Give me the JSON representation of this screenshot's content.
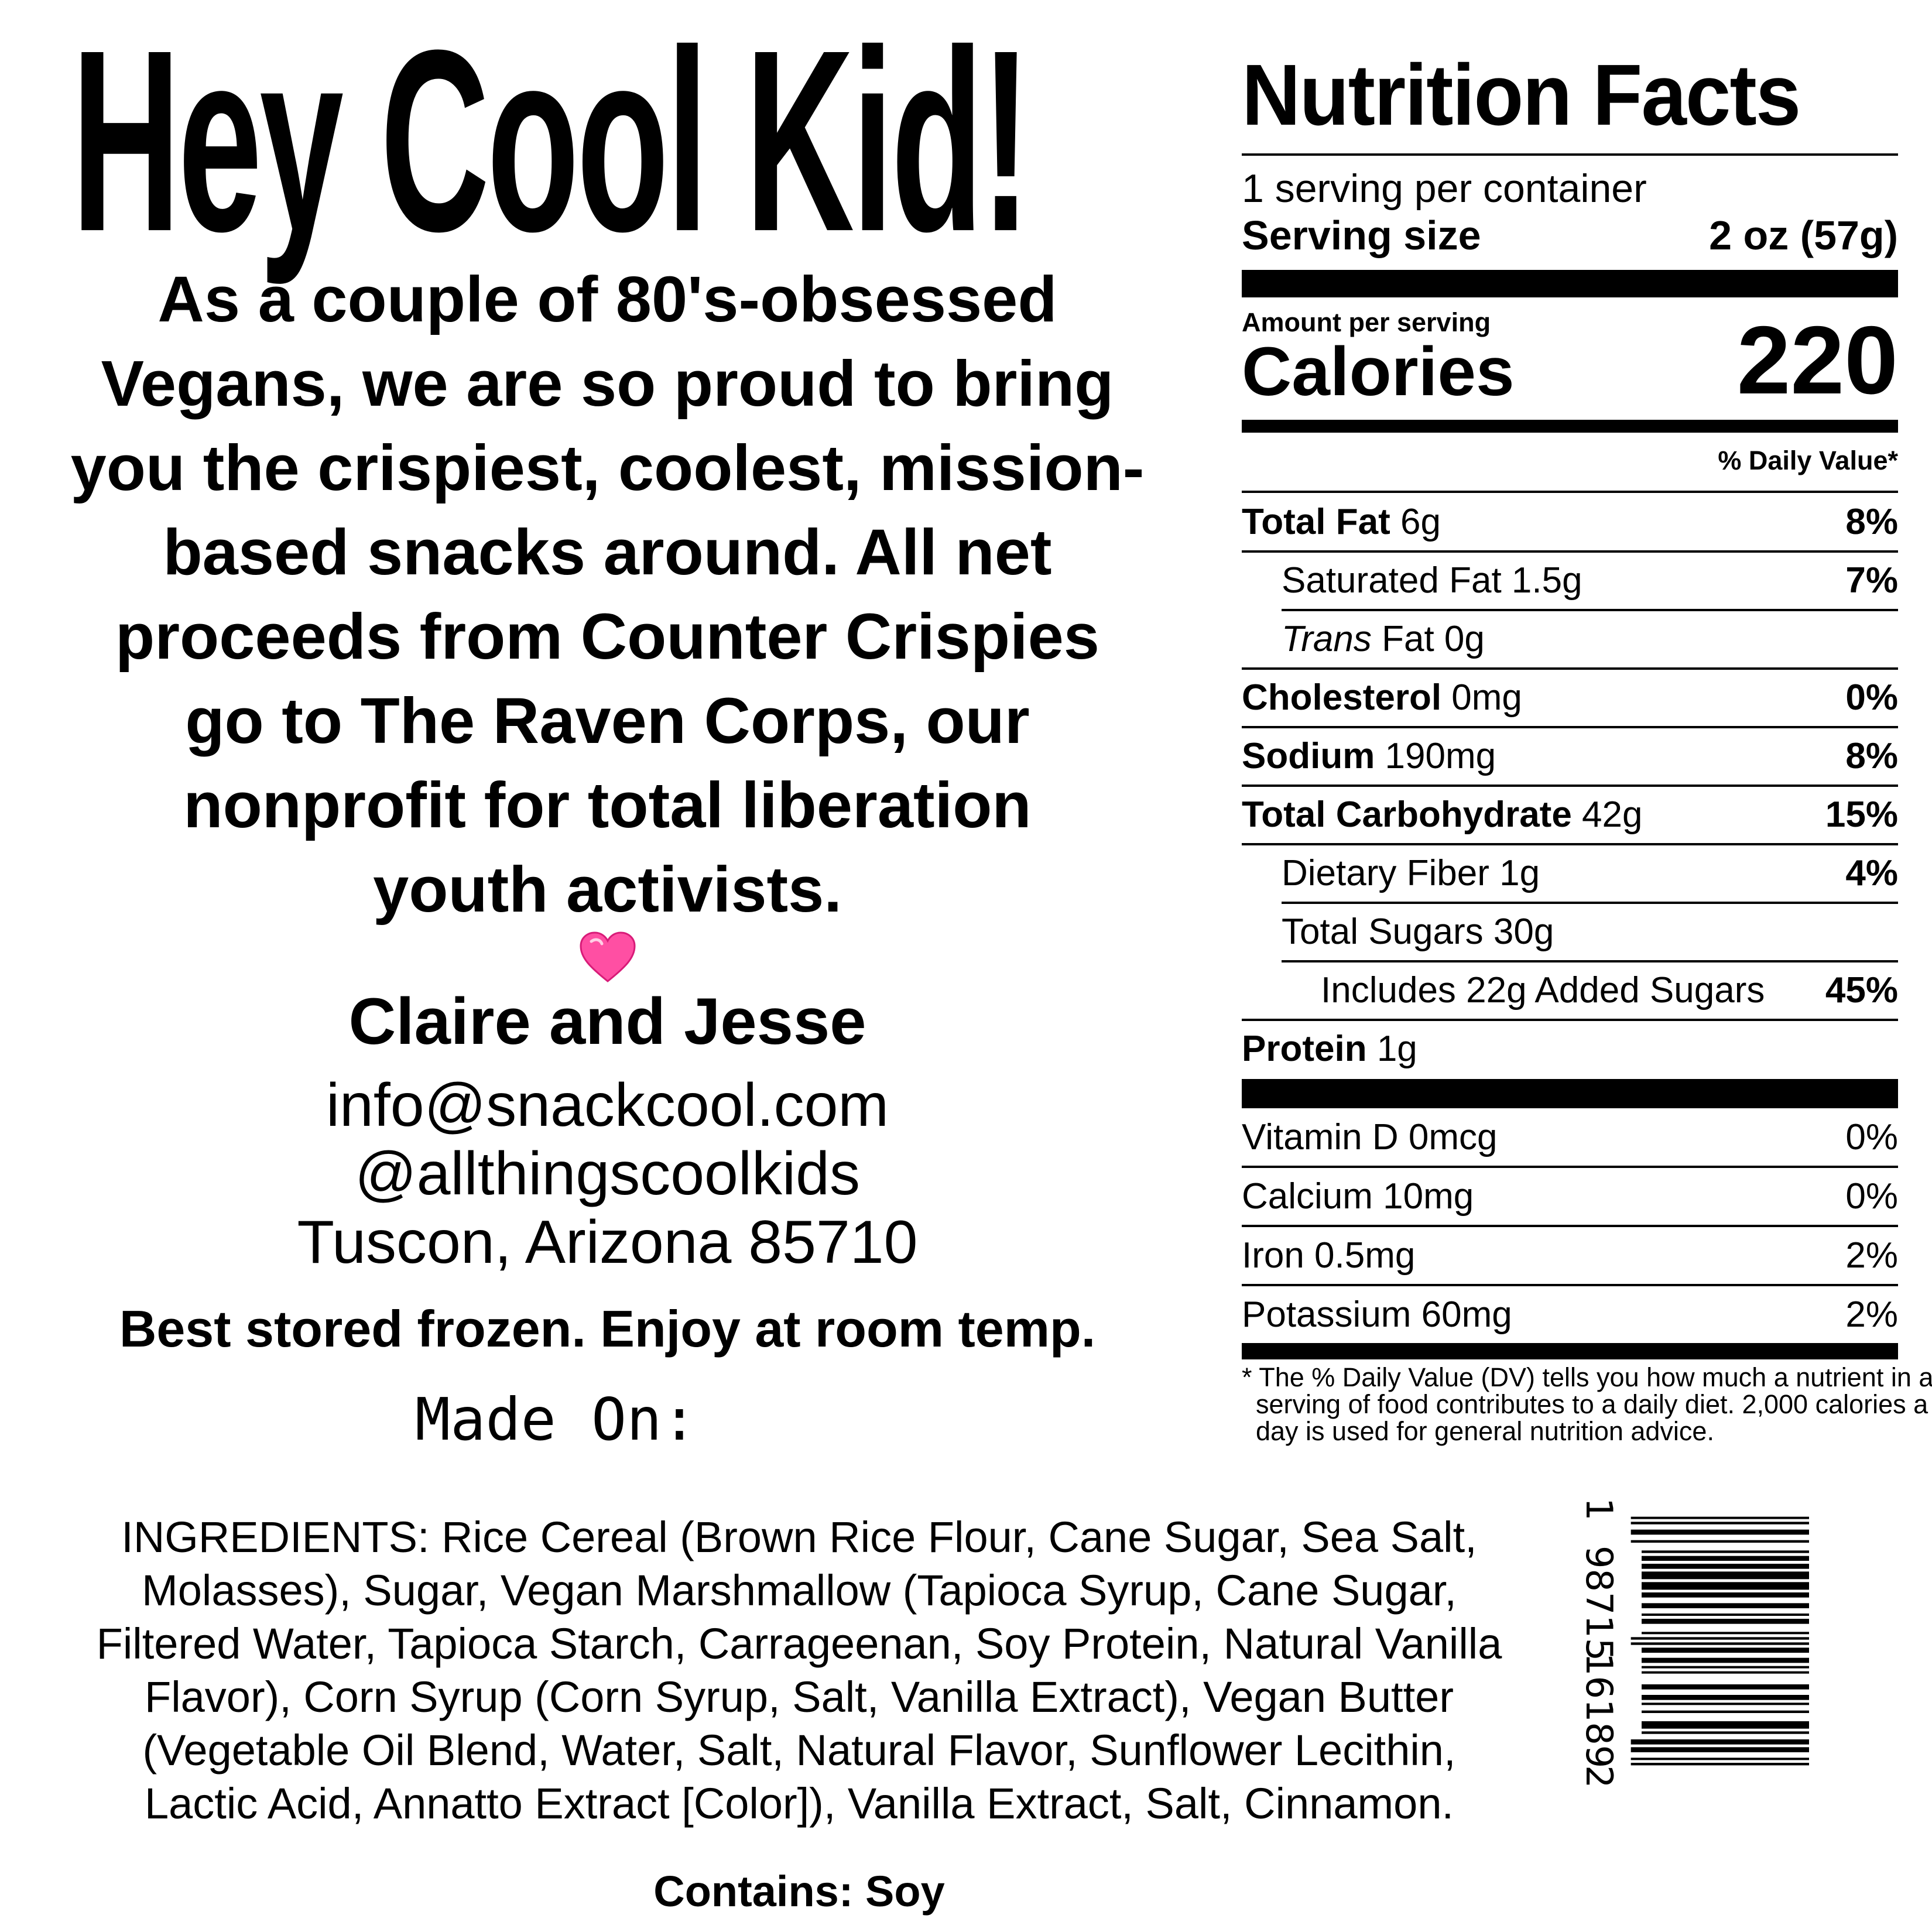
{
  "title": "Hey Cool Kid!",
  "story_lines": [
    "As a couple of 80's-obsessed",
    "Vegans, we are so proud to bring",
    "you the crispiest, coolest, mission-",
    "based snacks around. All net",
    "proceeds from Counter Crispies",
    "go to The Raven Corps, our",
    "nonprofit for total liberation",
    "youth activists."
  ],
  "heart": "💗",
  "signoff": "Claire and Jesse",
  "contact": {
    "email": "info@snackcool.com",
    "social": "@allthingscoolkids",
    "location": "Tuscon, Arizona 85710"
  },
  "storage": "Best stored frozen. Enjoy at room temp.",
  "made_on_label": "Made On:",
  "ingredients_lines": [
    "INGREDIENTS: Rice Cereal (Brown Rice Flour, Cane Sugar, Sea Salt,",
    "Molasses), Sugar, Vegan Marshmallow (Tapioca Syrup, Cane Sugar,",
    "Filtered Water, Tapioca Starch, Carrageenan, Soy Protein, Natural Vanilla",
    "Flavor), Corn Syrup (Corn Syrup, Salt, Vanilla Extract), Vegan Butter",
    "(Vegetable Oil Blend, Water, Salt, Natural Flavor, Sunflower Lecithin,",
    "Lactic Acid, Annatto Extract [Color]), Vanilla Extract, Salt, Cinnamon."
  ],
  "contains": "Contains: Soy",
  "nutrition": {
    "title": "Nutrition Facts",
    "servings": "1 serving per container",
    "serving_size_label": "Serving size",
    "serving_size": "2 oz (57g)",
    "amount_per_serving": "Amount per serving",
    "calories_label": "Calories",
    "calories": "220",
    "dv_header": "% Daily Value*",
    "rows": [
      {
        "name": "Total Fat",
        "amount": " 6g",
        "dv": "8%"
      },
      {
        "name": "Saturated Fat 1.5g",
        "amount": "",
        "dv": "7%"
      },
      {
        "name": "Trans",
        "amount": " Fat 0g",
        "dv": ""
      },
      {
        "name": "Cholesterol",
        "amount": " 0mg",
        "dv": "0%"
      },
      {
        "name": "Sodium",
        "amount": " 190mg",
        "dv": "8%"
      },
      {
        "name": "Total Carbohydrate",
        "amount": " 42g",
        "dv": "15%"
      },
      {
        "name": "Dietary Fiber 1g",
        "amount": "",
        "dv": "4%"
      },
      {
        "name": "Total Sugars 30g",
        "amount": "",
        "dv": ""
      },
      {
        "name": "Includes 22g Added Sugars",
        "amount": "",
        "dv": "45%"
      },
      {
        "name": "Protein",
        "amount": " 1g",
        "dv": ""
      }
    ],
    "vitamins": [
      {
        "name": "Vitamin D 0mcg",
        "dv": "0%"
      },
      {
        "name": "Calcium 10mg",
        "dv": "0%"
      },
      {
        "name": "Iron 0.5mg",
        "dv": "2%"
      },
      {
        "name": "Potassium 60mg",
        "dv": "2%"
      }
    ],
    "footnote_lines": [
      "* The % Daily Value (DV) tells you how much a nutrient in a",
      "serving of food contributes to a daily diet. 2,000 calories a",
      "day is used for general nutrition advice."
    ]
  },
  "barcode": {
    "digits": [
      "1",
      "98715",
      "16189",
      "2"
    ]
  },
  "colors": {
    "text": "#000000",
    "background": "#ffffff",
    "heart": "#ff4fa3"
  }
}
